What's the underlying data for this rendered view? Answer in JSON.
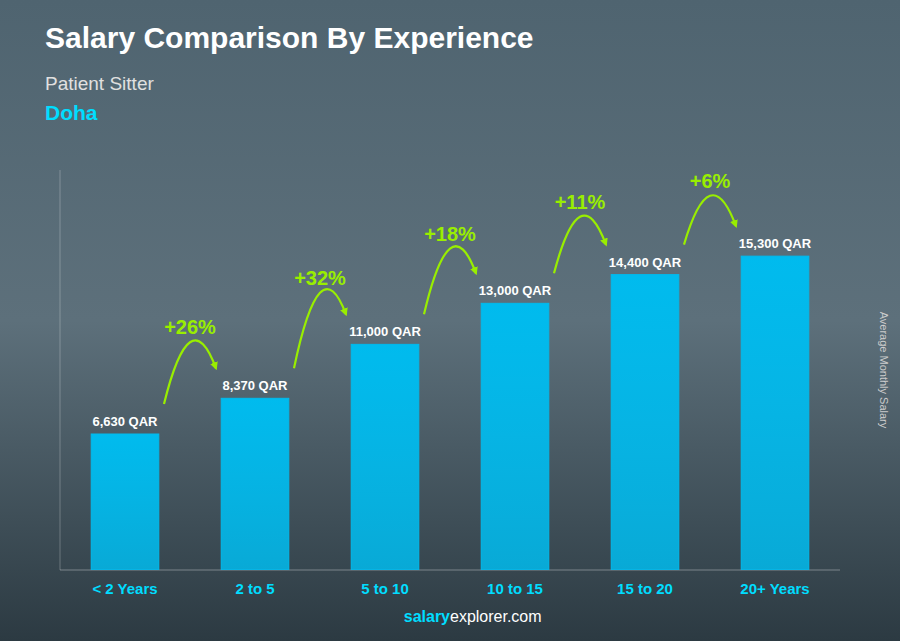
{
  "chart_data": {
    "type": "bar",
    "title": "Salary Comparison By Experience",
    "subtitle": [
      "Patient Sitter",
      "Doha"
    ],
    "categories": [
      "< 2 Years",
      "2 to 5",
      "5 to 10",
      "10 to 15",
      "15 to 20",
      "20+ Years"
    ],
    "values": [
      6630,
      8370,
      11000,
      13000,
      14400,
      15300
    ],
    "value_labels": [
      "6,630 QAR",
      "8,370 QAR",
      "11,000 QAR",
      "13,000 QAR",
      "14,400 QAR",
      "15,300 QAR"
    ],
    "data_labels": true,
    "annotations": [
      "+26%",
      "+32%",
      "+18%",
      "+11%",
      "+6%"
    ],
    "ylabel": "Average Monthly Salary",
    "footer": [
      "salary",
      "explorer.com"
    ],
    "color": "#00bbee",
    "ylim": [
      0,
      19500
    ],
    "tick_labels": "x",
    "grid": false
  }
}
